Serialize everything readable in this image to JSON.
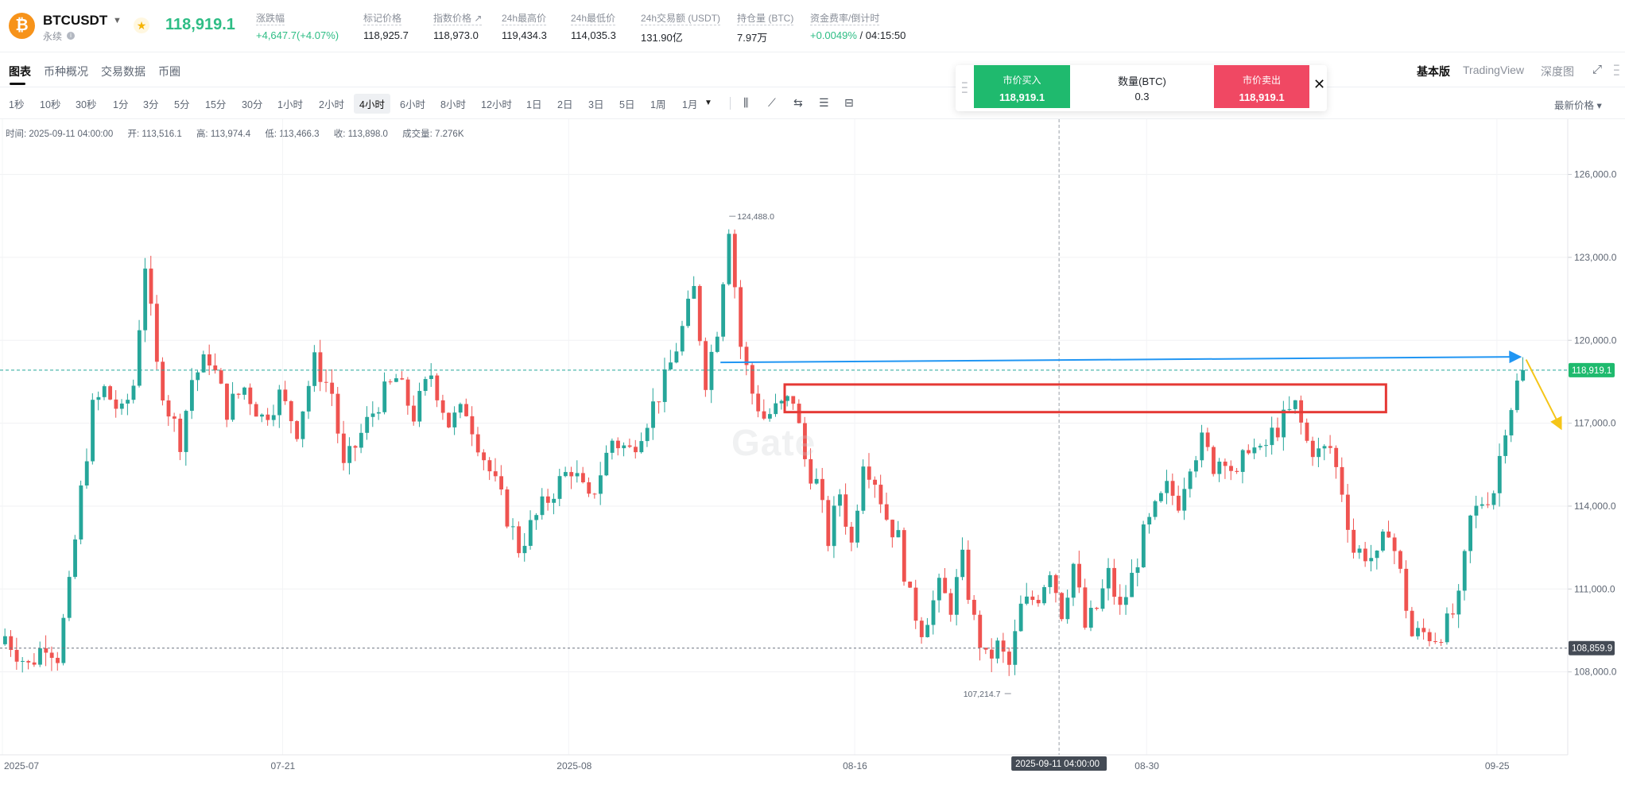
{
  "header": {
    "coin_logo": "₿",
    "symbol": "BTCUSDT",
    "contract_type": "永续",
    "last_price": "118,919.1",
    "stats": [
      {
        "label": "涨跌幅",
        "value": "+4,647.7(+4.07%)",
        "up": true
      },
      {
        "label": "标记价格",
        "value": "118,925.7"
      },
      {
        "label": "指数价格 ↗",
        "value": "118,973.0"
      },
      {
        "label": "24h最高价",
        "value": "119,434.3"
      },
      {
        "label": "24h最低价",
        "value": "114,035.3"
      },
      {
        "label": "24h交易额 (USDT)",
        "value": "131.90亿"
      },
      {
        "label": "持仓量 (BTC)",
        "value": "7.97万"
      },
      {
        "label": "资金费率/倒计时",
        "value": "+0.0049%",
        "value_rest": " / 04:15:50",
        "up": true
      }
    ]
  },
  "tabs": [
    "图表",
    "币种概况",
    "交易数据",
    "币圈"
  ],
  "views": [
    "基本版",
    "TradingView",
    "深度图"
  ],
  "intervals": [
    "1秒",
    "10秒",
    "30秒",
    "1分",
    "3分",
    "5分",
    "15分",
    "30分",
    "1小时",
    "2小时",
    "4小时",
    "6小时",
    "8小时",
    "12小时",
    "1日",
    "2日",
    "3日",
    "5日",
    "1周",
    "1月"
  ],
  "active_interval": "4小时",
  "price_mode": "最新价格 ▾",
  "order_panel": {
    "buy_label": "市价买入",
    "buy_price": "118,919.1",
    "qty_label": "数量(BTC)",
    "qty_value": "0.3",
    "sell_label": "市价卖出",
    "sell_price": "118,919.1"
  },
  "ohlc": {
    "time": "时间: 2025-09-11 04:00:00",
    "open": "开: 113,516.1",
    "high": "高: 113,974.4",
    "low": "低: 113,466.3",
    "close": "收: 113,898.0",
    "volume": "成交量: 7.276K"
  },
  "watermark": "Gate",
  "colors": {
    "up": "#26a69a",
    "down": "#ef5350",
    "accent_blue": "#2196f3",
    "arrow_yellow": "#f5c518",
    "zone_red": "#e53935"
  },
  "chart_data": {
    "type": "candlestick",
    "y_range": [
      105000,
      128000
    ],
    "y_ticks": [
      "126,000.0",
      "123,000.0",
      "120,000.0",
      "117,000.0",
      "114,000.0",
      "111,000.0",
      "108,000.0"
    ],
    "y_tick_values": [
      126000,
      123000,
      120000,
      117000,
      114000,
      111000,
      108000
    ],
    "x_ticks": [
      "2025-07",
      "07-21",
      "2025-08",
      "08-16",
      "08-30",
      "09-25"
    ],
    "current_price_label": "118,919.1",
    "current_price": 118919.1,
    "support_label": "108,859.9",
    "support_price": 108859.9,
    "high_marker": "124,488.0",
    "high_marker_price": 124488.0,
    "low_marker": "107,214.7",
    "low_marker_price": 107214.7,
    "crosshair_label": "2025-09-11 04:00:00",
    "closes": [
      [
        0,
        109300
      ],
      [
        4,
        108200
      ],
      [
        7,
        109100
      ],
      [
        9,
        108600
      ],
      [
        11,
        111000
      ],
      [
        13,
        114500
      ],
      [
        15,
        117500
      ],
      [
        17,
        118200
      ],
      [
        20,
        117300
      ],
      [
        22,
        118400
      ],
      [
        24,
        122800
      ],
      [
        26,
        119000
      ],
      [
        28,
        117500
      ],
      [
        30,
        116400
      ],
      [
        32,
        118600
      ],
      [
        35,
        119400
      ],
      [
        38,
        117500
      ],
      [
        41,
        118300
      ],
      [
        44,
        117200
      ],
      [
        47,
        118000
      ],
      [
        50,
        116800
      ],
      [
        53,
        119200
      ],
      [
        56,
        118100
      ],
      [
        58,
        115300
      ],
      [
        61,
        116600
      ],
      [
        64,
        117800
      ],
      [
        67,
        118600
      ],
      [
        70,
        117300
      ],
      [
        73,
        118800
      ],
      [
        76,
        117000
      ],
      [
        79,
        117500
      ],
      [
        82,
        115800
      ],
      [
        85,
        114200
      ],
      [
        88,
        112500
      ],
      [
        91,
        113600
      ],
      [
        94,
        114600
      ],
      [
        97,
        115400
      ],
      [
        100,
        114100
      ],
      [
        104,
        116400
      ],
      [
        107,
        116000
      ],
      [
        110,
        117200
      ],
      [
        113,
        118500
      ],
      [
        116,
        120400
      ],
      [
        118,
        121800
      ],
      [
        120,
        118600
      ],
      [
        122,
        120500
      ],
      [
        124,
        124200
      ],
      [
        126,
        119800
      ],
      [
        128,
        118100
      ],
      [
        130,
        117200
      ],
      [
        133,
        117600
      ],
      [
        135,
        117900
      ],
      [
        137,
        115700
      ],
      [
        139,
        114800
      ],
      [
        141,
        112800
      ],
      [
        143,
        114500
      ],
      [
        145,
        112600
      ],
      [
        147,
        115800
      ],
      [
        149,
        115000
      ],
      [
        151,
        113600
      ],
      [
        153,
        112800
      ],
      [
        155,
        110600
      ],
      [
        157,
        109600
      ],
      [
        160,
        111000
      ],
      [
        162,
        110400
      ],
      [
        164,
        112000
      ],
      [
        166,
        109800
      ],
      [
        168,
        108400
      ],
      [
        170,
        108900
      ],
      [
        172,
        108200
      ],
      [
        174,
        110300
      ],
      [
        177,
        110800
      ],
      [
        179,
        111800
      ],
      [
        181,
        110200
      ],
      [
        183,
        111900
      ],
      [
        185,
        109600
      ],
      [
        187,
        110300
      ],
      [
        189,
        111500
      ],
      [
        191,
        110200
      ],
      [
        193,
        111400
      ],
      [
        195,
        112900
      ],
      [
        197,
        113800
      ],
      [
        199,
        114600
      ],
      [
        201,
        114200
      ],
      [
        203,
        115700
      ],
      [
        205,
        116300
      ],
      [
        207,
        115500
      ],
      [
        209,
        115900
      ],
      [
        211,
        114900
      ],
      [
        213,
        116300
      ],
      [
        215,
        115800
      ],
      [
        217,
        116600
      ],
      [
        219,
        117100
      ],
      [
        221,
        117600
      ],
      [
        223,
        116300
      ],
      [
        225,
        115900
      ],
      [
        227,
        116100
      ],
      [
        229,
        114600
      ],
      [
        231,
        112400
      ],
      [
        233,
        112300
      ],
      [
        235,
        112000
      ],
      [
        237,
        113300
      ],
      [
        239,
        111500
      ],
      [
        241,
        109300
      ],
      [
        243,
        109400
      ],
      [
        245,
        109300
      ],
      [
        247,
        109700
      ],
      [
        249,
        110500
      ],
      [
        251,
        113500
      ],
      [
        253,
        114200
      ],
      [
        255,
        114600
      ],
      [
        257,
        117000
      ],
      [
        259,
        118400
      ],
      [
        260,
        118919.1
      ]
    ],
    "annotations": [
      {
        "type": "horizontal_line",
        "name": "blue-arrow",
        "from_index": 123,
        "to_index": 260,
        "from_price": 119200,
        "to_price": 119400,
        "color": "#2196f3"
      },
      {
        "type": "rectangle",
        "name": "resistance-zone",
        "from_index": 134,
        "to_index": 237,
        "top_price": 118400,
        "bottom_price": 117400,
        "color": "#e53935"
      },
      {
        "type": "arrow",
        "name": "forecast-arrow",
        "from_index": 261,
        "to_index": 267,
        "from_price": 119300,
        "to_price": 116800,
        "color": "#f5c518"
      }
    ]
  }
}
